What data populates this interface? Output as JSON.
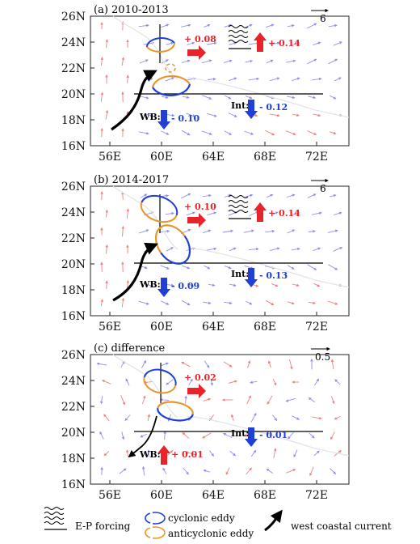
{
  "axes": {
    "y_ticks": [
      "26N",
      "24N",
      "22N",
      "20N",
      "18N",
      "16N"
    ],
    "x_ticks": [
      "56E",
      "60E",
      "64E",
      "68E",
      "72E"
    ]
  },
  "panels": [
    {
      "title": "(a) 2010-2013",
      "scale": "6",
      "ep_value": "+ 0.14",
      "north_value": "+ 0.08",
      "int_label": "Int:",
      "int_value": "- 0.12",
      "wb_label": "WB:",
      "wb_value": "- 0.10",
      "wb_dir": "down"
    },
    {
      "title": "(b) 2014-2017",
      "scale": "6",
      "ep_value": "+ 0.14",
      "north_value": "+ 0.10",
      "int_label": "Int:",
      "int_value": "- 0.13",
      "wb_label": "WB:",
      "wb_value": "- 0.09",
      "wb_dir": "down"
    },
    {
      "title": "(c) difference",
      "scale": "0.5",
      "ep_value": "",
      "north_value": "+ 0.02",
      "int_label": "Int:",
      "int_value": "- 0.01",
      "wb_label": "WB:",
      "wb_value": "+ 0.01",
      "wb_dir": "up"
    }
  ],
  "legend": {
    "ep": "E-P forcing",
    "cyclonic": "cyclonic eddy",
    "anticyclonic": "anticyclonic eddy",
    "coastal": "west coastal current"
  },
  "colors": {
    "cyclonic": "#1f3fd6",
    "anticyclonic": "#e8952a",
    "red": "#e8232a",
    "blue": "#1f3fd6",
    "vec_red": "#f08080",
    "vec_blue": "#8f8fee"
  }
}
